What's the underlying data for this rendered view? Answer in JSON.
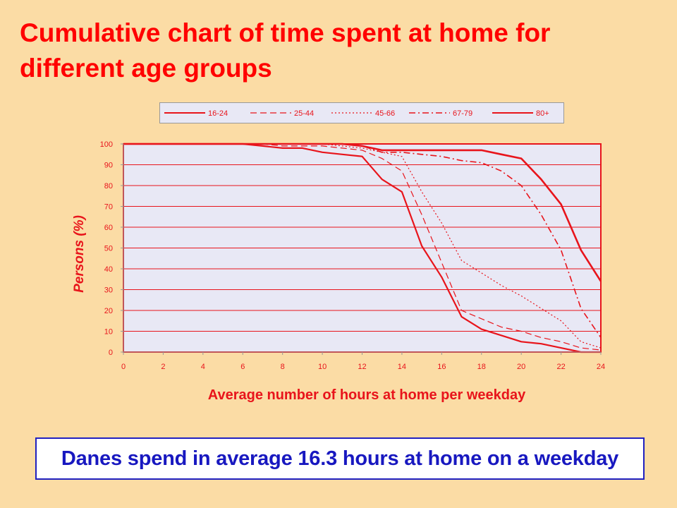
{
  "slide": {
    "title": "Cumulative chart of time spent at home for different age groups",
    "conclusion": "Danes spend in average 16.3 hours at home on a weekday"
  },
  "colors": {
    "background": "#FBDCA5",
    "title": "#FF0000",
    "series": "#E8141B",
    "plot_bg": "#E8E8F5",
    "conclusion_text": "#1818C0",
    "conclusion_border": "#2020C0"
  },
  "chart_data": {
    "type": "line",
    "xlabel": "Average number of hours at home per weekday",
    "ylabel": "Persons (%)",
    "xlim": [
      0,
      24
    ],
    "ylim": [
      0,
      100
    ],
    "xticks": [
      0,
      2,
      4,
      6,
      8,
      10,
      12,
      14,
      16,
      18,
      20,
      22,
      24
    ],
    "yticks": [
      0,
      10,
      20,
      30,
      40,
      50,
      60,
      70,
      80,
      90,
      100
    ],
    "grid": "horizontal",
    "legend_position": "top",
    "x": [
      0,
      1,
      2,
      3,
      4,
      5,
      6,
      7,
      8,
      9,
      10,
      11,
      12,
      13,
      14,
      15,
      16,
      17,
      18,
      19,
      20,
      21,
      22,
      23,
      24
    ],
    "series": [
      {
        "name": "16-24",
        "style": "solid",
        "values": [
          100,
          100,
          100,
          100,
          100,
          100,
          100,
          99,
          98,
          98,
          96,
          95,
          94,
          83,
          77,
          51,
          36,
          17,
          11,
          8,
          5,
          4,
          2,
          0,
          0
        ]
      },
      {
        "name": "25-44",
        "style": "dash",
        "values": [
          100,
          100,
          100,
          100,
          100,
          100,
          100,
          100,
          99,
          99,
          99,
          98,
          97,
          93,
          87,
          66,
          43,
          20,
          16,
          12,
          10,
          7,
          5,
          2,
          1
        ]
      },
      {
        "name": "45-66",
        "style": "dot",
        "values": [
          100,
          100,
          100,
          100,
          100,
          100,
          100,
          100,
          100,
          100,
          100,
          99,
          98,
          96,
          94,
          77,
          62,
          44,
          38,
          32,
          27,
          21,
          15,
          5,
          2
        ]
      },
      {
        "name": "67-79",
        "style": "dashdot",
        "values": [
          100,
          100,
          100,
          100,
          100,
          100,
          100,
          100,
          100,
          100,
          100,
          100,
          99,
          96,
          96,
          95,
          94,
          92,
          91,
          87,
          80,
          66,
          49,
          21,
          7
        ]
      },
      {
        "name": "80+",
        "style": "solid-thick",
        "values": [
          100,
          100,
          100,
          100,
          100,
          100,
          100,
          100,
          100,
          100,
          100,
          100,
          99,
          97,
          97,
          97,
          97,
          97,
          97,
          95,
          93,
          83,
          71,
          49,
          34
        ]
      }
    ]
  }
}
